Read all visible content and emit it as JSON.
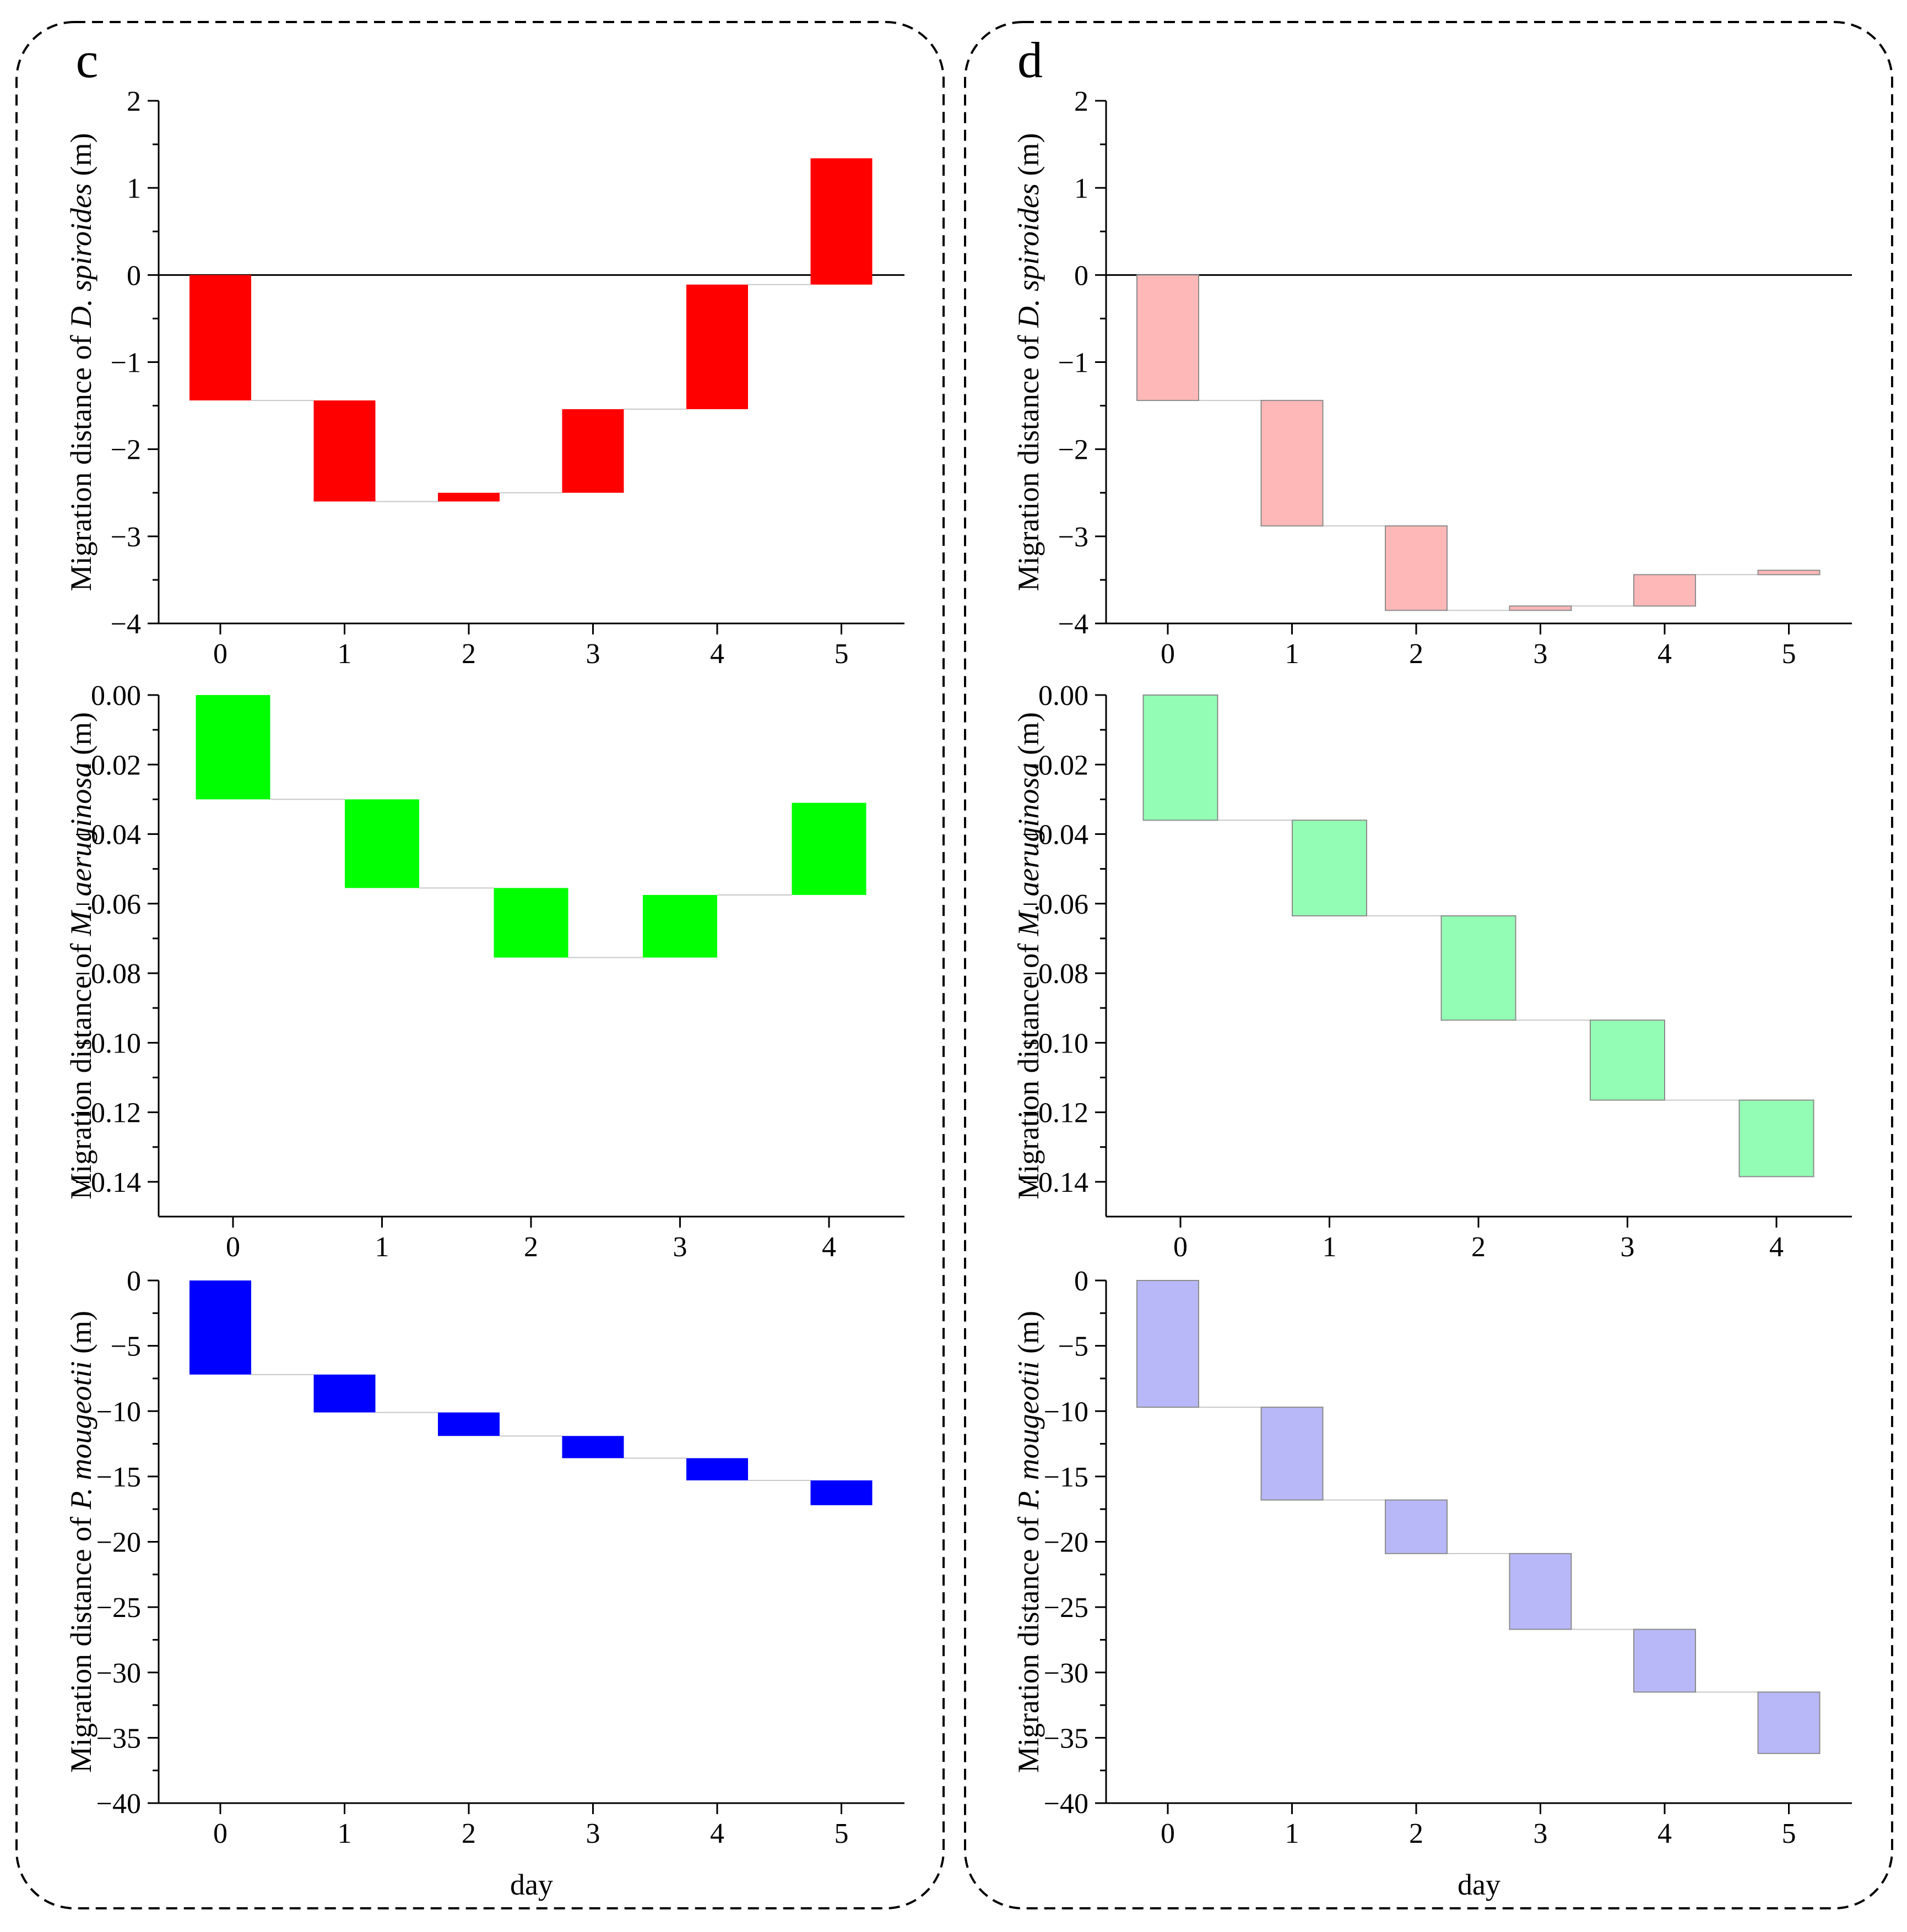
{
  "panels": [
    {
      "id": "c",
      "label": "c"
    },
    {
      "id": "d",
      "label": "d"
    }
  ],
  "xlabel": "day",
  "ylabel_prefix": "Migration distance of ",
  "ylabel_suffix": " (m)",
  "colors": {
    "c_ds": "#ff0000",
    "c_ma": "#00ff00",
    "c_pm": "#0000ff",
    "d_ds": "#ffb8b8",
    "d_ma": "#93fdb5",
    "d_pm": "#b8b8f8",
    "d_stroke": "#8c8c8c",
    "connector": "#c8c8c8"
  },
  "chart_data": [
    {
      "panel": "c",
      "type": "bar",
      "subtype": "waterfall",
      "species": "D. spiroides",
      "ylabel": "Migration distance of D. spiroides (m)",
      "xlabel": "",
      "categories": [
        "0",
        "1",
        "2",
        "3",
        "4",
        "5"
      ],
      "ylim": [
        -4,
        2
      ],
      "yticks": [
        -4,
        -3,
        -2,
        -1,
        0,
        1,
        2
      ],
      "ytick_labels": [
        "−4",
        "−3",
        "−2",
        "−1",
        "0",
        "1",
        "2"
      ],
      "bars": [
        [
          0,
          -1.44
        ],
        [
          -1.44,
          -2.6
        ],
        [
          -2.6,
          -2.5
        ],
        [
          -2.5,
          -1.54
        ],
        [
          -1.54,
          -0.11
        ],
        [
          -0.11,
          1.34
        ]
      ]
    },
    {
      "panel": "c",
      "type": "bar",
      "subtype": "waterfall",
      "species": "M. aeruginosa",
      "ylabel": "Migration distance of M. aeruginosa (m)",
      "xlabel": "",
      "categories": [
        "0",
        "1",
        "2",
        "3",
        "4"
      ],
      "ylim": [
        -0.15,
        0
      ],
      "yticks": [
        -0.14,
        -0.12,
        -0.1,
        -0.08,
        -0.06,
        -0.04,
        -0.02,
        0
      ],
      "ytick_labels": [
        "−0.14",
        "−0.12",
        "−0.10",
        "−0.08",
        "−0.06",
        "−0.04",
        "−0.02",
        "0.00"
      ],
      "bars": [
        [
          0,
          -0.03
        ],
        [
          -0.03,
          -0.0555
        ],
        [
          -0.0555,
          -0.0755
        ],
        [
          -0.0755,
          -0.0575
        ],
        [
          -0.0575,
          -0.031
        ]
      ]
    },
    {
      "panel": "c",
      "type": "bar",
      "subtype": "waterfall",
      "species": "P. mougeotii",
      "ylabel": "Migration distance of P. mougeotii (m)",
      "xlabel": "day",
      "categories": [
        "0",
        "1",
        "2",
        "3",
        "4",
        "5"
      ],
      "ylim": [
        -40,
        0
      ],
      "yticks": [
        -40,
        -35,
        -30,
        -25,
        -20,
        -15,
        -10,
        -5,
        0
      ],
      "ytick_labels": [
        "−40",
        "−35",
        "−30",
        "−25",
        "−20",
        "−15",
        "−10",
        "−5",
        "0"
      ],
      "bars": [
        [
          0,
          -7.2
        ],
        [
          -7.2,
          -10.1
        ],
        [
          -10.1,
          -11.9
        ],
        [
          -11.9,
          -13.6
        ],
        [
          -13.6,
          -15.3
        ],
        [
          -15.3,
          -17.2
        ]
      ]
    },
    {
      "panel": "d",
      "type": "bar",
      "subtype": "waterfall",
      "species": "D. spiroides",
      "ylabel": "Migration distance of D. spiroides (m)",
      "xlabel": "",
      "categories": [
        "0",
        "1",
        "2",
        "3",
        "4",
        "5"
      ],
      "ylim": [
        -4,
        2
      ],
      "yticks": [
        -4,
        -3,
        -2,
        -1,
        0,
        1,
        2
      ],
      "ytick_labels": [
        "−4",
        "−3",
        "−2",
        "−1",
        "0",
        "1",
        "2"
      ],
      "bars": [
        [
          0,
          -1.44
        ],
        [
          -1.44,
          -2.88
        ],
        [
          -2.88,
          -3.85
        ],
        [
          -3.85,
          -3.8
        ],
        [
          -3.8,
          -3.44
        ],
        [
          -3.44,
          -3.39
        ]
      ]
    },
    {
      "panel": "d",
      "type": "bar",
      "subtype": "waterfall",
      "species": "M. aeruginosa",
      "ylabel": "Migration distance of M. aeruginosa (m)",
      "xlabel": "",
      "categories": [
        "0",
        "1",
        "2",
        "3",
        "4"
      ],
      "ylim": [
        -0.15,
        0
      ],
      "yticks": [
        -0.14,
        -0.12,
        -0.1,
        -0.08,
        -0.06,
        -0.04,
        -0.02,
        0
      ],
      "ytick_labels": [
        "−0.14",
        "−0.12",
        "−0.10",
        "−0.08",
        "−0.06",
        "−0.04",
        "−0.02",
        "0.00"
      ],
      "bars": [
        [
          0,
          -0.036
        ],
        [
          -0.036,
          -0.0635
        ],
        [
          -0.0635,
          -0.0935
        ],
        [
          -0.0935,
          -0.1165
        ],
        [
          -0.1165,
          -0.1385
        ]
      ]
    },
    {
      "panel": "d",
      "type": "bar",
      "subtype": "waterfall",
      "species": "P. mougeotii",
      "ylabel": "Migration distance of P. mougeotii (m)",
      "xlabel": "day",
      "categories": [
        "0",
        "1",
        "2",
        "3",
        "4",
        "5"
      ],
      "ylim": [
        -40,
        0
      ],
      "yticks": [
        -40,
        -35,
        -30,
        -25,
        -20,
        -15,
        -10,
        -5,
        0
      ],
      "ytick_labels": [
        "−40",
        "−35",
        "−30",
        "−25",
        "−20",
        "−15",
        "−10",
        "−5",
        "0"
      ],
      "bars": [
        [
          0,
          -9.7
        ],
        [
          -9.7,
          -16.8
        ],
        [
          -16.8,
          -20.9
        ],
        [
          -20.9,
          -26.7
        ],
        [
          -26.7,
          -31.5
        ],
        [
          -31.5,
          -36.2
        ]
      ]
    }
  ]
}
